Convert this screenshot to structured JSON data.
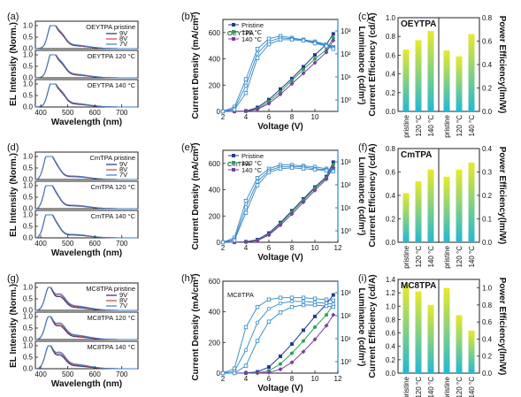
{
  "figure_panels": [
    "(a)",
    "(b)",
    "(c)",
    "(d)",
    "(e)",
    "(f)",
    "(g)",
    "(h)",
    "(i)"
  ],
  "colors": {
    "accent_blue": "#2f86c8",
    "navy_9V": "#1e2e78",
    "red_8V": "#d63b3b",
    "blue_7V": "#3a7fc7",
    "pristine": "#233b8f",
    "c120": "#2aa25a",
    "c140": "#7a3fa0",
    "bar_top_yellow": "#e8ea2a",
    "bar_bottom_cyan": "#22b8d6"
  },
  "chart_data": [
    {
      "id": "a",
      "type": "line",
      "ylabel": "EL Intensity (Norm.)",
      "xlabel": "Wavelength (nm)",
      "xlim": [
        380,
        760
      ],
      "xticks": [
        400,
        500,
        600,
        700
      ],
      "subplots": [
        {
          "label": "OEYTPA pristine",
          "legend": [
            "9V",
            "8V",
            "7V"
          ],
          "yticks": [
            "0.0",
            "0.5",
            "1.0"
          ]
        },
        {
          "label": "OEYTPA 120 °C",
          "yticks": [
            "0.0",
            "0.5",
            "1.0"
          ]
        },
        {
          "label": "OEYTPA 140 °C",
          "yticks": [
            "0.0",
            "0.5",
            "1.0"
          ]
        }
      ],
      "series_shape": {
        "peak_nm": 440,
        "shoulder_nm": 470,
        "shoulder_height": 0.55,
        "shoulder_spread": [
          0.0,
          0.02,
          0.04
        ]
      }
    },
    {
      "id": "b",
      "type": "line",
      "title": "OEYTPA",
      "xlabel": "Voltage (V)",
      "ylabel": "Current Density (mA/cm²)",
      "y2label": "Luminance (cd/m²)",
      "xlim": [
        2,
        12
      ],
      "xticks": [
        2,
        4,
        6,
        8,
        10
      ],
      "ylim": [
        0,
        700
      ],
      "yticks": [
        0,
        200,
        400,
        600
      ],
      "y2ticks": [
        "10⁰",
        "10¹",
        "10²",
        "10³"
      ],
      "legend": [
        "Pristine",
        "120 °C",
        "140 °C"
      ],
      "series": [
        {
          "name": "Pristine",
          "x": [
            2,
            3,
            4,
            5,
            6,
            7,
            8,
            9,
            10,
            11,
            11.6
          ],
          "current": [
            0,
            1,
            3,
            30,
            90,
            170,
            250,
            340,
            430,
            510,
            590
          ],
          "lum_frac": [
            0,
            0.05,
            0.35,
            0.68,
            0.79,
            0.82,
            0.8,
            0.78,
            0.76,
            0.73,
            0.7
          ]
        },
        {
          "name": "120 °C",
          "x": [
            2,
            3,
            4,
            5,
            6,
            7,
            8,
            9,
            10,
            11,
            11.6
          ],
          "current": [
            0,
            1,
            2,
            20,
            75,
            150,
            235,
            320,
            400,
            470,
            560
          ],
          "lum_frac": [
            0,
            0.03,
            0.28,
            0.63,
            0.76,
            0.8,
            0.79,
            0.78,
            0.75,
            0.72,
            0.69
          ]
        },
        {
          "name": "140 °C",
          "x": [
            2,
            3,
            4,
            5,
            6,
            7,
            8,
            9,
            10,
            11,
            11.6
          ],
          "current": [
            0,
            0,
            2,
            15,
            60,
            130,
            210,
            290,
            370,
            450,
            540
          ],
          "lum_frac": [
            0,
            0.02,
            0.2,
            0.58,
            0.73,
            0.78,
            0.78,
            0.77,
            0.74,
            0.71,
            0.68
          ]
        }
      ]
    },
    {
      "id": "c",
      "type": "bar",
      "title": "OEYTPA",
      "categories": [
        "pristine",
        "120 °C",
        "140 °C"
      ],
      "ylabel": "Current Efficiency (cd/A)",
      "y2label": "Power Efficiency(lm/W)",
      "ylim": [
        0,
        1.0
      ],
      "yticks": [
        "0.0",
        "0.2",
        "0.4",
        "0.6",
        "0.8",
        "1.0"
      ],
      "y2lim": [
        0,
        0.8
      ],
      "y2ticks": [
        "0.0",
        "0.2",
        "0.4",
        "0.6",
        "0.8"
      ],
      "current_efficiency": [
        0.66,
        0.76,
        0.86
      ],
      "power_efficiency": [
        0.52,
        0.47,
        0.66
      ]
    },
    {
      "id": "d",
      "type": "line",
      "ylabel": "EL Intensity (Norm.)",
      "xlabel": "Wavelength (nm)",
      "xlim": [
        380,
        760
      ],
      "xticks": [
        400,
        500,
        600,
        700
      ],
      "subplots": [
        {
          "label": "CmTPA pristine",
          "legend": [
            "9V",
            "8V",
            "7V"
          ],
          "yticks": [
            "0.0",
            "0.5",
            "1.0"
          ]
        },
        {
          "label": "CmTPA 120 °C",
          "yticks": [
            "0.0",
            "0.5",
            "1.0"
          ]
        },
        {
          "label": "CmTPA 140 °C",
          "yticks": [
            "0.0",
            "0.5",
            "1.0"
          ]
        }
      ],
      "series_shape": {
        "peak_nm": 425,
        "shoulder_nm": 450,
        "shoulder_height": 0.6,
        "shoulder_spread": [
          0.0,
          0.02,
          0.03
        ]
      }
    },
    {
      "id": "e",
      "type": "line",
      "title": "CmTPA",
      "xlabel": "Voltage (V)",
      "ylabel": "Current Density (mA/cm²)",
      "y2label": "Luminance (cd/m²)",
      "xlim": [
        2,
        12
      ],
      "xticks": [
        2,
        4,
        6,
        8,
        10,
        12
      ],
      "ylim": [
        0,
        700
      ],
      "yticks": [
        0,
        200,
        400,
        600
      ],
      "y2ticks": [
        "10⁰",
        "10¹",
        "10²",
        "10³"
      ],
      "legend": [
        "Pristine",
        "120 °C",
        "140 °C"
      ],
      "series": [
        {
          "name": "Pristine",
          "x": [
            2,
            3,
            4,
            5,
            6,
            7,
            8,
            9,
            10,
            11,
            11.6
          ],
          "current": [
            0,
            1,
            4,
            20,
            70,
            150,
            240,
            330,
            420,
            500,
            610
          ],
          "lum_frac": [
            0,
            0.05,
            0.45,
            0.7,
            0.8,
            0.84,
            0.84,
            0.83,
            0.82,
            0.8,
            0.79
          ]
        },
        {
          "name": "120 °C",
          "x": [
            2,
            3,
            4,
            5,
            6,
            7,
            8,
            9,
            10,
            11,
            11.6
          ],
          "current": [
            0,
            1,
            3,
            15,
            60,
            140,
            230,
            320,
            410,
            490,
            590
          ],
          "lum_frac": [
            0,
            0.03,
            0.38,
            0.66,
            0.78,
            0.82,
            0.82,
            0.82,
            0.8,
            0.79,
            0.78
          ]
        },
        {
          "name": "140 °C",
          "x": [
            2,
            3,
            4,
            5,
            6,
            7,
            8,
            9,
            10,
            11,
            11.6
          ],
          "current": [
            0,
            0,
            2,
            12,
            55,
            130,
            215,
            305,
            395,
            480,
            570
          ],
          "lum_frac": [
            0,
            0.02,
            0.32,
            0.62,
            0.76,
            0.8,
            0.81,
            0.8,
            0.79,
            0.78,
            0.77
          ]
        }
      ]
    },
    {
      "id": "f",
      "type": "bar",
      "title": "CmTPA",
      "categories": [
        "pristine",
        "120 °C",
        "140 °C"
      ],
      "ylabel": "Current Efficiency (cd/A)",
      "y2label": "Power Efficiency(lm/W)",
      "ylim": [
        0,
        0.8
      ],
      "yticks": [
        "0.0",
        "0.2",
        "0.4",
        "0.6",
        "0.8"
      ],
      "y2lim": [
        0,
        0.4
      ],
      "y2ticks": [
        "0.0",
        "0.1",
        "0.2",
        "0.3",
        "0.4"
      ],
      "current_efficiency": [
        0.42,
        0.52,
        0.62
      ],
      "power_efficiency": [
        0.28,
        0.31,
        0.34
      ]
    },
    {
      "id": "g",
      "type": "line",
      "ylabel": "EL Intensity (Norm.)",
      "xlabel": "Wavelength (nm)",
      "xlim": [
        380,
        760
      ],
      "xticks": [
        400,
        500,
        600,
        700
      ],
      "subplots": [
        {
          "label": "MC8TPA pristine",
          "legend": [
            "9V",
            "8V",
            "7V"
          ],
          "yticks": [
            "0.0",
            "0.5",
            "1.0"
          ]
        },
        {
          "label": "MC8TPA 120 °C",
          "yticks": [
            "0.0",
            "0.5",
            "1.0"
          ]
        },
        {
          "label": "MC8TPA 140 °C",
          "yticks": [
            "0.0",
            "0.5",
            "1.0"
          ]
        }
      ],
      "series_shape": {
        "peak_nm": 430,
        "shoulder_nm": 470,
        "shoulder_height": 0.5,
        "shoulder_spread": [
          0.0,
          0.04,
          0.08
        ]
      }
    },
    {
      "id": "h",
      "type": "line",
      "title": "MC8TPA",
      "xlabel": "Voltage (V)",
      "ylabel": "Current Density (mA/cm²)",
      "y2label": "Luminance (cd/m²)",
      "xlim": [
        2,
        12
      ],
      "xticks": [
        2,
        4,
        6,
        8,
        10,
        12
      ],
      "ylim": [
        0,
        600
      ],
      "yticks": [
        0,
        200,
        400,
        600
      ],
      "y2ticks": [
        "10⁰",
        "10¹",
        "10²",
        "10³"
      ],
      "legend": [],
      "series": [
        {
          "name": "Pristine",
          "x": [
            2,
            3,
            4,
            5,
            6,
            7,
            8,
            9,
            10,
            11,
            11.6
          ],
          "current": [
            0,
            0,
            1,
            8,
            40,
            110,
            190,
            280,
            370,
            450,
            510
          ],
          "lum_frac": [
            0,
            0.05,
            0.5,
            0.72,
            0.8,
            0.82,
            0.82,
            0.82,
            0.81,
            0.8,
            0.79
          ]
        },
        {
          "name": "120 °C",
          "x": [
            2,
            3,
            4,
            5,
            6,
            7,
            8,
            9,
            10,
            11,
            11.6
          ],
          "current": [
            0,
            0,
            0,
            2,
            15,
            60,
            130,
            210,
            300,
            380,
            450
          ],
          "lum_frac": [
            0,
            0.02,
            0.25,
            0.55,
            0.7,
            0.76,
            0.78,
            0.78,
            0.77,
            0.76,
            0.75
          ]
        },
        {
          "name": "140 °C",
          "x": [
            2,
            3,
            4,
            5,
            6,
            7,
            8,
            9,
            10,
            11,
            11.6
          ],
          "current": [
            0,
            0,
            0,
            0,
            4,
            25,
            70,
            140,
            220,
            310,
            380
          ],
          "lum_frac": [
            0,
            0,
            0.08,
            0.35,
            0.56,
            0.66,
            0.72,
            0.74,
            0.74,
            0.73,
            0.72
          ]
        }
      ]
    },
    {
      "id": "i",
      "type": "bar",
      "title": "MC8TPA",
      "categories": [
        "pristine",
        "120 °C",
        "140 °C"
      ],
      "ylabel": "Current Efficiency (cd/A)",
      "y2label": "Power Efficiency(lm/W)",
      "ylim": [
        0,
        1.4
      ],
      "yticks": [
        "0.0",
        "0.2",
        "0.4",
        "0.6",
        "0.8",
        "1.0",
        "1.2",
        "1.4"
      ],
      "y2lim": [
        0,
        1.1
      ],
      "y2ticks": [
        "0.0",
        "0.2",
        "0.4",
        "0.6",
        "0.8",
        "1.0"
      ],
      "current_efficiency": [
        1.32,
        1.22,
        1.02
      ],
      "power_efficiency": [
        1.0,
        0.68,
        0.5
      ]
    }
  ]
}
